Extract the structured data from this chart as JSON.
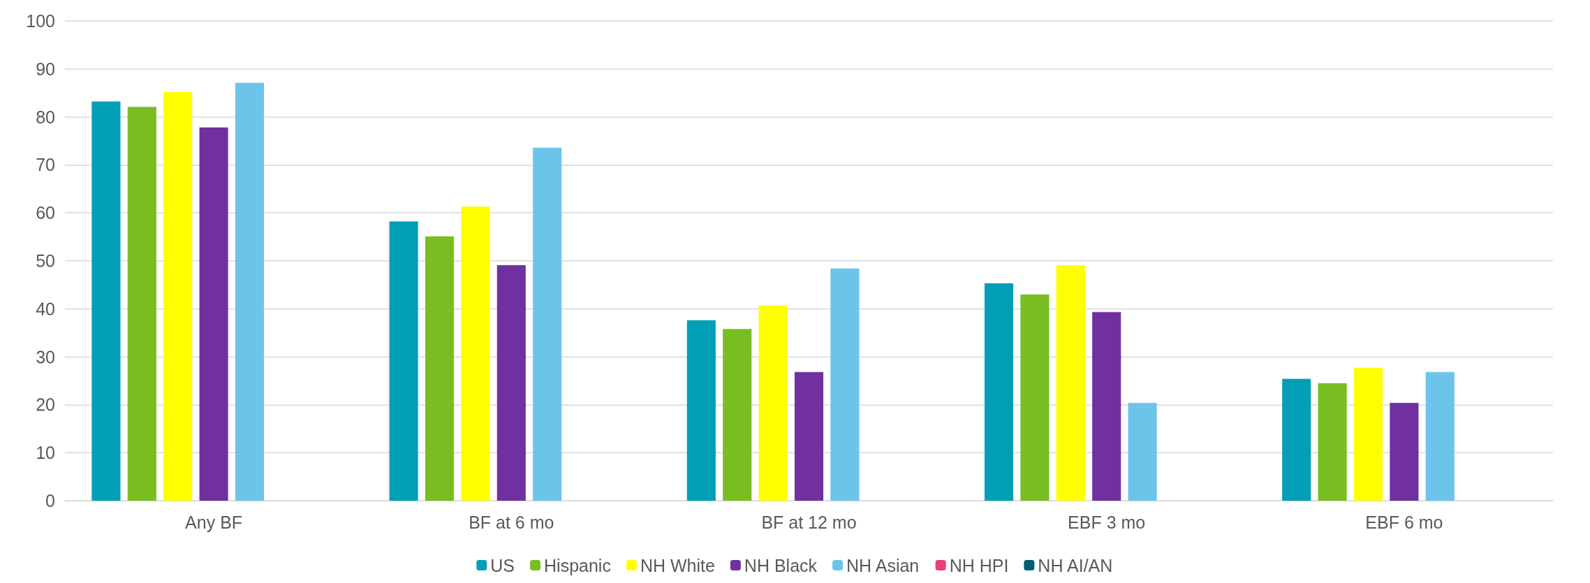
{
  "chart_data": {
    "type": "bar",
    "categories": [
      "Any BF",
      "BF at 6 mo",
      "BF at 12 mo",
      "EBF 3 mo",
      "EBF 6 mo"
    ],
    "series": [
      {
        "name": "US",
        "color": "#009fb5",
        "values": [
          83.2,
          58.2,
          37.6,
          45.3,
          25.4
        ]
      },
      {
        "name": "Hispanic",
        "color": "#78be20",
        "values": [
          82.1,
          55.1,
          35.8,
          43.0,
          24.5
        ]
      },
      {
        "name": "NH White",
        "color": "#ffff00",
        "values": [
          85.2,
          61.3,
          40.7,
          49.1,
          27.7
        ]
      },
      {
        "name": "NH Black",
        "color": "#7030a0",
        "values": [
          77.8,
          49.1,
          26.8,
          39.3,
          20.4
        ]
      },
      {
        "name": "NH Asian",
        "color": "#6cc4ea",
        "values": [
          87.1,
          73.6,
          48.4,
          20.4,
          26.8
        ]
      },
      {
        "name": "NH HPI",
        "color": "#e8417a",
        "values": [
          null,
          null,
          null,
          null,
          null
        ]
      },
      {
        "name": "NH AI/AN",
        "color": "#005f73",
        "values": [
          null,
          null,
          null,
          null,
          null
        ]
      }
    ],
    "ylim": [
      0,
      100
    ],
    "yticks": [
      0,
      10,
      20,
      30,
      40,
      50,
      60,
      70,
      80,
      90,
      100
    ],
    "grid": "y",
    "legend": "bottom"
  }
}
